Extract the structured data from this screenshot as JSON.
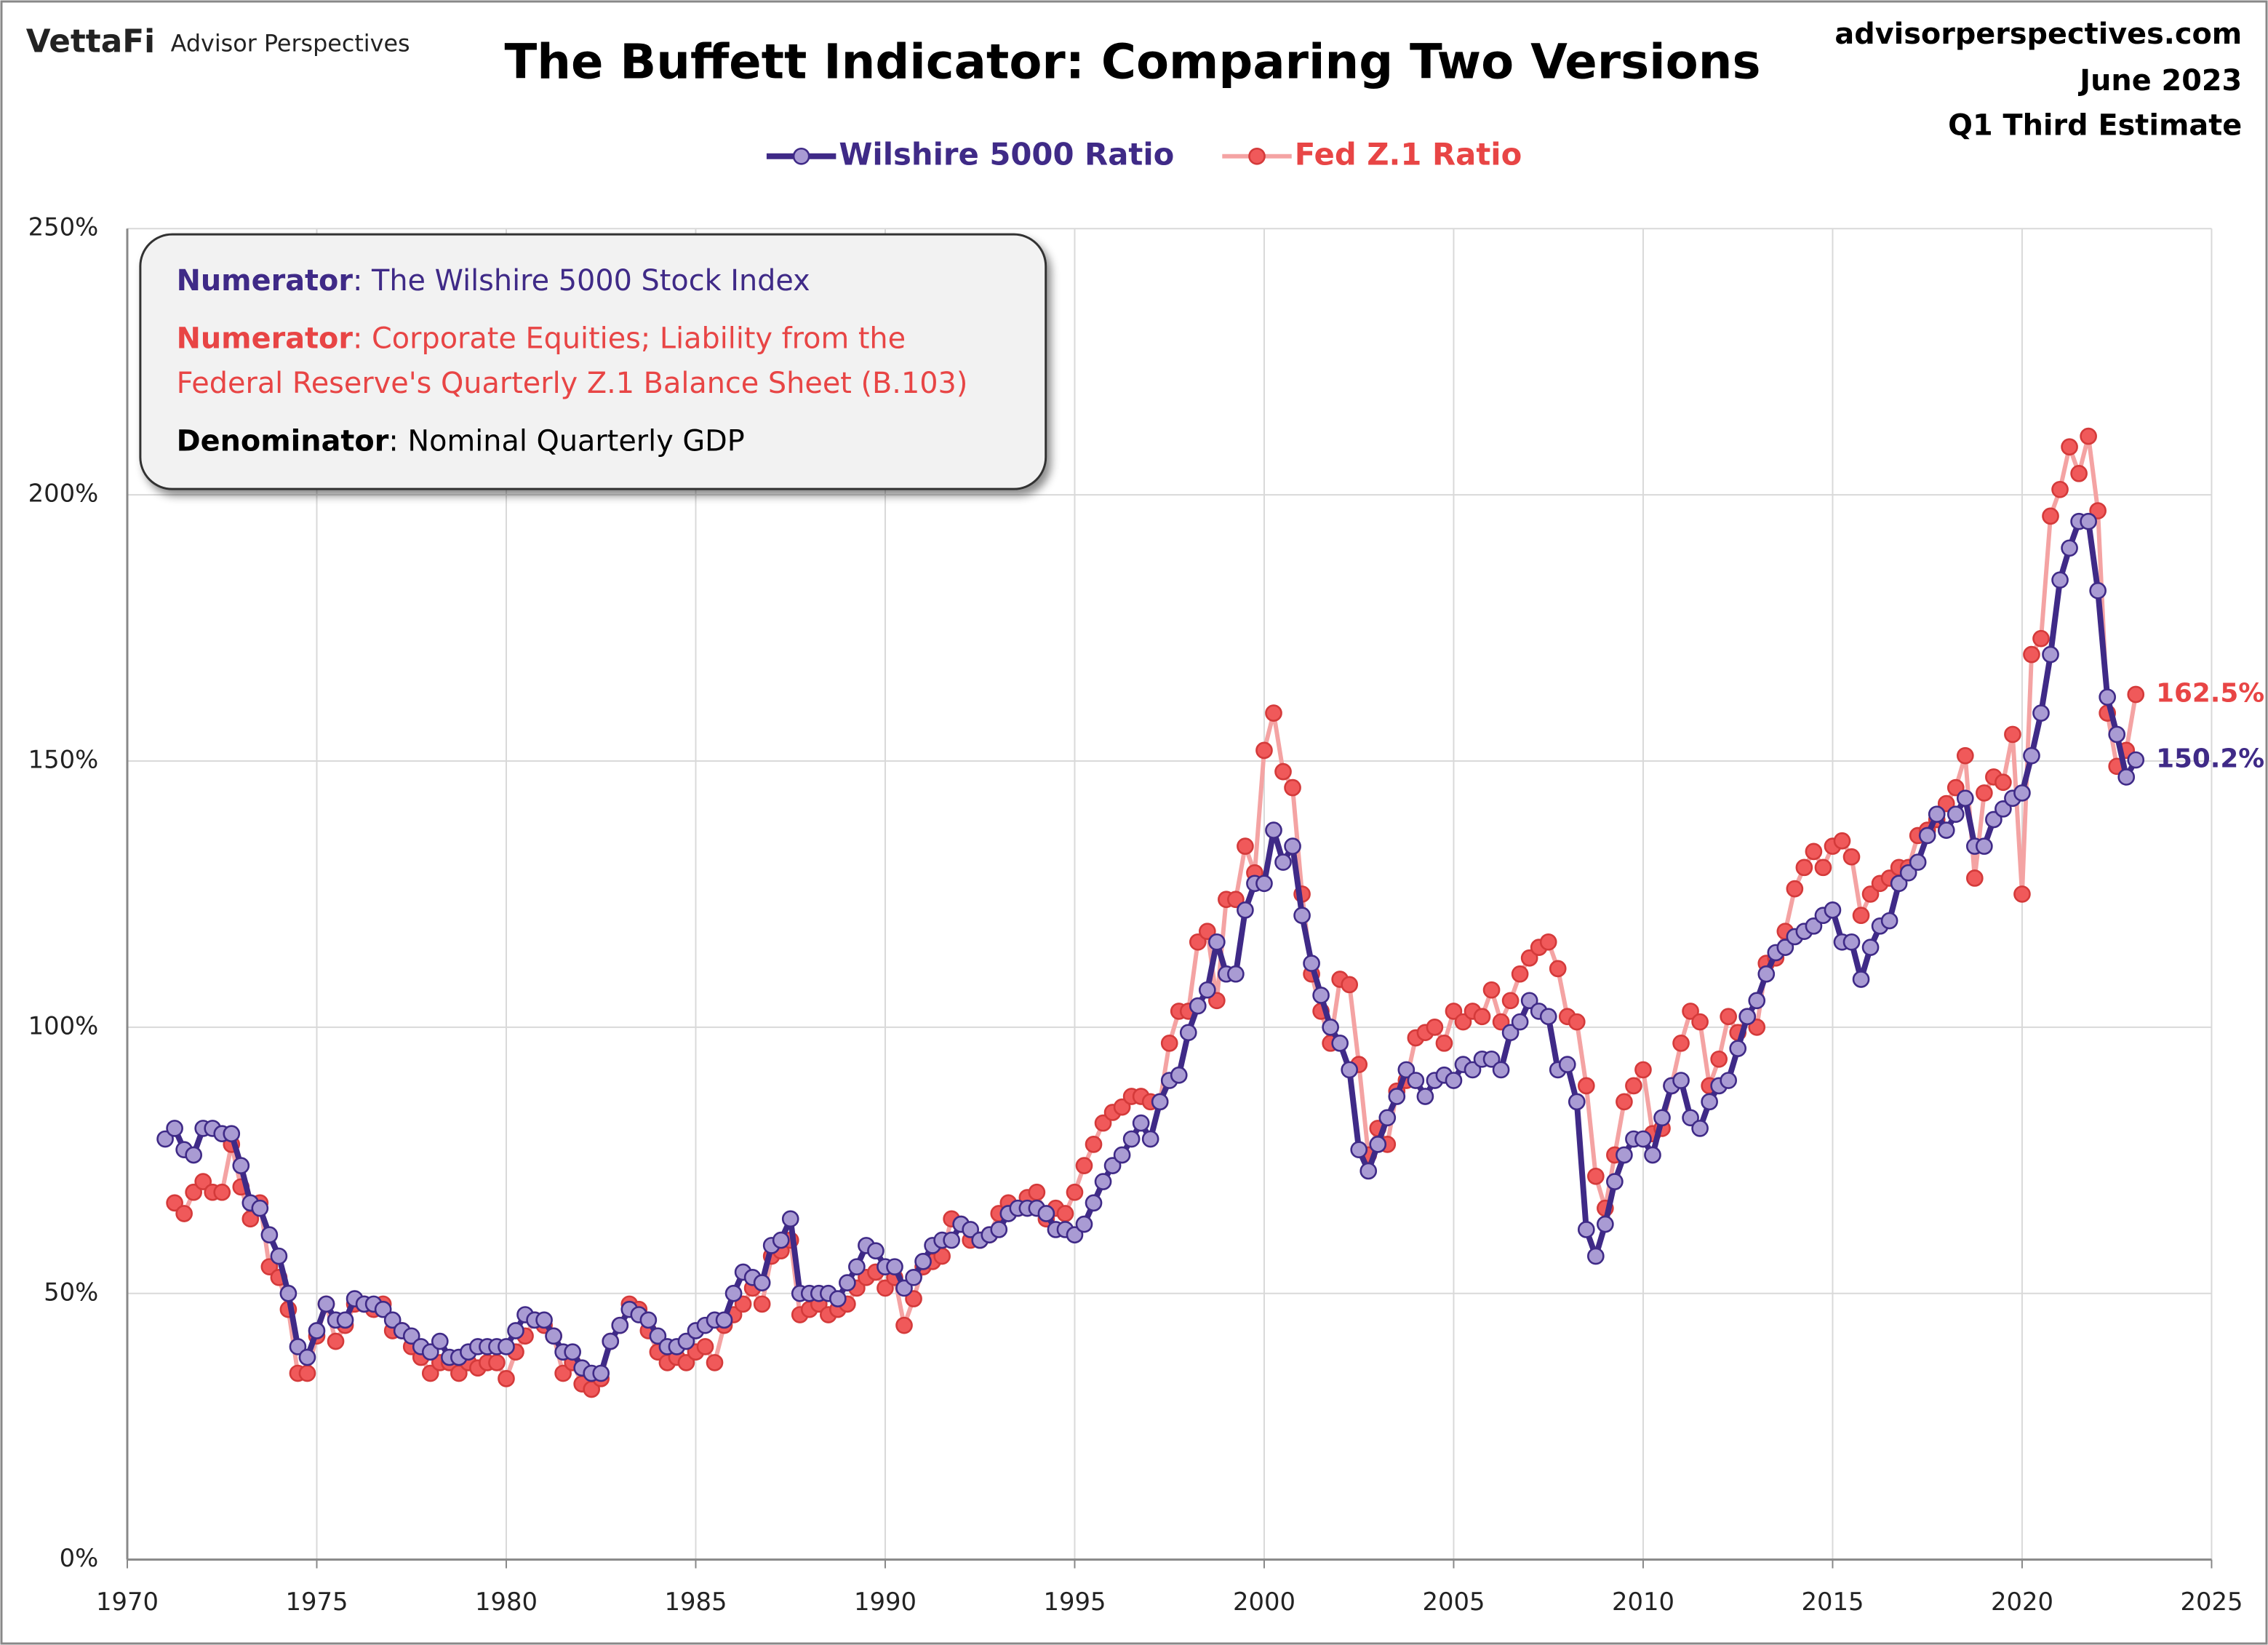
{
  "header": {
    "logo": "VettaFi",
    "brand": "Advisor Perspectives",
    "site": "advisorperspectives.com",
    "date": "June 2023",
    "estimate": "Q1 Third Estimate"
  },
  "chart_data": {
    "type": "line",
    "title": "The Buffett Indicator: Comparing Two Versions",
    "notes": [
      {
        "label": "Numerator",
        "lines": [
          ": The Wilshire 5000 Stock Index"
        ],
        "color": "#3f2a87"
      },
      {
        "label": "Numerator",
        "lines": [
          ": Corporate Equities; Liability from the",
          "Federal Reserve's Quarterly Z.1 Balance Sheet (B.103)"
        ],
        "color": "#e84545"
      },
      {
        "label": "Denominator",
        "lines": [
          ": Nominal Quarterly GDP"
        ],
        "color": "#000000"
      }
    ],
    "x": [
      1971,
      1971.25,
      1971.5,
      1971.75,
      1972,
      1972.25,
      1972.5,
      1972.75,
      1973,
      1973.25,
      1973.5,
      1973.75,
      1974,
      1974.25,
      1974.5,
      1974.75,
      1975,
      1975.25,
      1975.5,
      1975.75,
      1976,
      1976.25,
      1976.5,
      1976.75,
      1977,
      1977.25,
      1977.5,
      1977.75,
      1978,
      1978.25,
      1978.5,
      1978.75,
      1979,
      1979.25,
      1979.5,
      1979.75,
      1980,
      1980.25,
      1980.5,
      1980.75,
      1981,
      1981.25,
      1981.5,
      1981.75,
      1982,
      1982.25,
      1982.5,
      1982.75,
      1983,
      1983.25,
      1983.5,
      1983.75,
      1984,
      1984.25,
      1984.5,
      1984.75,
      1985,
      1985.25,
      1985.5,
      1985.75,
      1986,
      1986.25,
      1986.5,
      1986.75,
      1987,
      1987.25,
      1987.5,
      1987.75,
      1988,
      1988.25,
      1988.5,
      1988.75,
      1989,
      1989.25,
      1989.5,
      1989.75,
      1990,
      1990.25,
      1990.5,
      1990.75,
      1991,
      1991.25,
      1991.5,
      1991.75,
      1992,
      1992.25,
      1992.5,
      1992.75,
      1993,
      1993.25,
      1993.5,
      1993.75,
      1994,
      1994.25,
      1994.5,
      1994.75,
      1995,
      1995.25,
      1995.5,
      1995.75,
      1996,
      1996.25,
      1996.5,
      1996.75,
      1997,
      1997.25,
      1997.5,
      1997.75,
      1998,
      1998.25,
      1998.5,
      1998.75,
      1999,
      1999.25,
      1999.5,
      1999.75,
      2000,
      2000.25,
      2000.5,
      2000.75,
      2001,
      2001.25,
      2001.5,
      2001.75,
      2002,
      2002.25,
      2002.5,
      2002.75,
      2003,
      2003.25,
      2003.5,
      2003.75,
      2004,
      2004.25,
      2004.5,
      2004.75,
      2005,
      2005.25,
      2005.5,
      2005.75,
      2006,
      2006.25,
      2006.5,
      2006.75,
      2007,
      2007.25,
      2007.5,
      2007.75,
      2008,
      2008.25,
      2008.5,
      2008.75,
      2009,
      2009.25,
      2009.5,
      2009.75,
      2010,
      2010.25,
      2010.5,
      2010.75,
      2011,
      2011.25,
      2011.5,
      2011.75,
      2012,
      2012.25,
      2012.5,
      2012.75,
      2013,
      2013.25,
      2013.5,
      2013.75,
      2014,
      2014.25,
      2014.5,
      2014.75,
      2015,
      2015.25,
      2015.5,
      2015.75,
      2016,
      2016.25,
      2016.5,
      2016.75,
      2017,
      2017.25,
      2017.5,
      2017.75,
      2018,
      2018.25,
      2018.5,
      2018.75,
      2019,
      2019.25,
      2019.5,
      2019.75,
      2020,
      2020.25,
      2020.5,
      2020.75,
      2021,
      2021.25,
      2021.5,
      2021.75,
      2022,
      2022.25,
      2022.5,
      2022.75,
      2023
    ],
    "series": [
      {
        "name": "Wilshire 5000 Ratio",
        "color": "#3f2a87",
        "marker_fill": "#a99bd3",
        "end_label": "150.2%",
        "values": [
          79,
          81,
          77,
          76,
          81,
          81,
          80,
          80,
          74,
          67,
          66,
          61,
          57,
          50,
          40,
          38,
          43,
          48,
          45,
          45,
          49,
          48,
          48,
          47,
          45,
          43,
          42,
          40,
          39,
          41,
          38,
          38,
          39,
          40,
          40,
          40,
          40,
          43,
          46,
          45,
          45,
          42,
          39,
          39,
          36,
          35,
          35,
          41,
          44,
          47,
          46,
          45,
          42,
          40,
          40,
          41,
          43,
          44,
          45,
          45,
          50,
          54,
          53,
          52,
          59,
          60,
          64,
          50,
          50,
          50,
          50,
          49,
          52,
          55,
          59,
          58,
          55,
          55,
          51,
          53,
          56,
          59,
          60,
          60,
          63,
          62,
          60,
          61,
          62,
          65,
          66,
          66,
          66,
          65,
          62,
          62,
          61,
          63,
          67,
          71,
          74,
          76,
          79,
          82,
          79,
          86,
          90,
          91,
          99,
          104,
          107,
          116,
          110,
          110,
          122,
          127,
          127,
          137,
          131,
          134,
          121,
          112,
          106,
          100,
          97,
          92,
          77,
          73,
          78,
          83,
          87,
          92,
          90,
          87,
          90,
          91,
          90,
          93,
          92,
          94,
          94,
          92,
          99,
          101,
          105,
          103,
          102,
          92,
          93,
          86,
          62,
          57,
          63,
          71,
          76,
          79,
          79,
          76,
          83,
          89,
          90,
          83,
          81,
          86,
          89,
          90,
          96,
          102,
          105,
          110,
          114,
          115,
          117,
          118,
          119,
          121,
          122,
          116,
          116,
          109,
          115,
          119,
          120,
          127,
          129,
          131,
          136,
          140,
          137,
          140,
          143,
          134,
          134,
          139,
          141,
          143,
          144,
          151,
          159,
          170,
          184,
          190,
          195,
          195,
          182,
          162,
          155,
          147,
          150.2
        ]
      },
      {
        "name": "Fed Z.1 Ratio",
        "color": "#f4a3a3",
        "marker_fill": "#f0595a",
        "marker_stroke": "#d43a3a",
        "label_color": "#e84545",
        "end_label": "162.5%",
        "values": [
          null,
          67,
          65,
          69,
          71,
          69,
          69,
          78,
          70,
          64,
          67,
          55,
          53,
          47,
          35,
          35,
          42,
          48,
          41,
          44,
          48,
          48,
          47,
          48,
          43,
          43,
          40,
          38,
          35,
          37,
          37,
          35,
          37,
          36,
          37,
          37,
          34,
          39,
          42,
          45,
          44,
          42,
          35,
          37,
          33,
          32,
          34,
          41,
          44,
          48,
          47,
          43,
          39,
          37,
          38,
          37,
          39,
          40,
          37,
          44,
          46,
          48,
          51,
          48,
          57,
          58,
          60,
          46,
          47,
          48,
          46,
          47,
          48,
          51,
          53,
          54,
          51,
          53,
          44,
          49,
          55,
          56,
          57,
          64,
          63,
          60,
          60,
          61,
          65,
          67,
          66,
          68,
          69,
          64,
          66,
          65,
          69,
          74,
          78,
          82,
          84,
          85,
          87,
          87,
          86,
          86,
          97,
          103,
          103,
          116,
          118,
          105,
          124,
          124,
          134,
          129,
          152,
          159,
          148,
          145,
          125,
          110,
          103,
          97,
          109,
          108,
          93,
          76,
          81,
          78,
          88,
          90,
          98,
          99,
          100,
          97,
          103,
          101,
          103,
          102,
          107,
          101,
          105,
          110,
          113,
          115,
          116,
          111,
          102,
          101,
          89,
          72,
          66,
          76,
          86,
          89,
          92,
          80,
          81,
          89,
          97,
          103,
          101,
          89,
          94,
          102,
          99,
          102,
          100,
          112,
          113,
          118,
          126,
          130,
          133,
          130,
          134,
          135,
          132,
          121,
          125,
          127,
          128,
          130,
          130,
          136,
          137,
          139,
          142,
          145,
          151,
          128,
          144,
          147,
          146,
          155,
          125,
          170,
          173,
          196,
          201,
          209,
          204,
          211,
          197,
          159,
          149,
          152,
          162.5
        ]
      }
    ],
    "xlim": [
      1970,
      2025
    ],
    "xticks": [
      1970,
      1975,
      1980,
      1985,
      1990,
      1995,
      2000,
      2005,
      2010,
      2015,
      2020,
      2025
    ],
    "ylim": [
      0,
      250
    ],
    "yticks": [
      {
        "value": 0,
        "label": "0%"
      },
      {
        "value": 50,
        "label": "50%"
      },
      {
        "value": 100,
        "label": "100%"
      },
      {
        "value": 150,
        "label": "150%"
      },
      {
        "value": 200,
        "label": "200%"
      },
      {
        "value": 250,
        "label": "250%"
      }
    ],
    "grid": true
  }
}
